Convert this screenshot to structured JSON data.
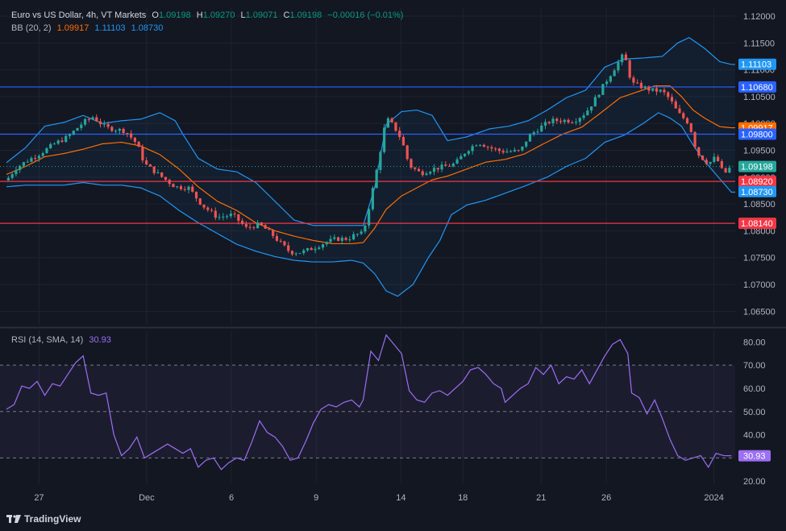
{
  "header": {
    "symbol": "Euro vs US Dollar, 4h, VT Markets",
    "o_label": "O",
    "o": "1.09198",
    "h_label": "H",
    "h": "1.09270",
    "l_label": "L",
    "l": "1.09071",
    "c_label": "C",
    "c": "1.09198",
    "change": "−0.00016 (−0.01%)",
    "bb_label": "BB (20, 2)",
    "bb_mid": "1.09917",
    "bb_upper": "1.11103",
    "bb_lower": "1.08730",
    "rsi_label": "RSI (14, SMA, 14)",
    "rsi_value": "30.93"
  },
  "brand": "TradingView",
  "colors": {
    "background": "#131722",
    "grid": "#1f2330",
    "up": "#26a69a",
    "down": "#ef5350",
    "bb_band": "#2196f3",
    "bb_basis": "#ff6d00",
    "rsi": "#9c6ff3",
    "hline_blue": "#2962ff",
    "hline_red": "#f23645",
    "price_label": "#26a69a"
  },
  "chart_data": [
    {
      "type": "candlestick",
      "title": "Euro vs US Dollar, 4h, VT Markets",
      "y_ticks": [
        "1.12000",
        "1.11500",
        "1.11000",
        "1.10500",
        "1.10000",
        "1.09500",
        "1.09000",
        "1.08500",
        "1.08000",
        "1.07500",
        "1.07000",
        "1.06500"
      ],
      "x_ticks": [
        "27",
        "Dec",
        "6",
        "9",
        "14",
        "18",
        "21",
        "26",
        "2024"
      ],
      "ylim": [
        1.0625,
        1.1215
      ],
      "close_path": [
        [
          0,
          1.0894
        ],
        [
          5,
          1.0917
        ],
        [
          10,
          1.0929
        ],
        [
          18,
          1.0945
        ],
        [
          25,
          1.0962
        ],
        [
          32,
          1.0975
        ],
        [
          40,
          1.1002
        ],
        [
          45,
          1.1012
        ],
        [
          52,
          1.0992
        ],
        [
          62,
          1.0986
        ],
        [
          68,
          1.0962
        ],
        [
          72,
          1.0925
        ],
        [
          80,
          1.0903
        ],
        [
          88,
          1.0882
        ],
        [
          95,
          1.088
        ],
        [
          102,
          1.0848
        ],
        [
          110,
          1.0825
        ],
        [
          118,
          1.083
        ],
        [
          125,
          1.0805
        ],
        [
          132,
          1.0812
        ],
        [
          138,
          1.0795
        ],
        [
          142,
          1.078
        ],
        [
          148,
          1.076
        ],
        [
          154,
          1.076
        ],
        [
          160,
          1.0768
        ],
        [
          166,
          1.0778
        ],
        [
          172,
          1.0785
        ],
        [
          178,
          1.0785
        ],
        [
          182,
          1.0793
        ],
        [
          186,
          1.0795
        ],
        [
          190,
          1.086
        ],
        [
          194,
          1.093
        ],
        [
          198,
          1.101
        ],
        [
          202,
          1.0995
        ],
        [
          206,
          1.097
        ],
        [
          210,
          1.0922
        ],
        [
          216,
          1.0907
        ],
        [
          222,
          1.0915
        ],
        [
          230,
          1.0921
        ],
        [
          234,
          1.0925
        ],
        [
          240,
          1.095
        ],
        [
          246,
          1.0965
        ],
        [
          252,
          1.0955
        ],
        [
          258,
          1.0948
        ],
        [
          264,
          1.0948
        ],
        [
          268,
          1.0948
        ],
        [
          272,
          1.0975
        ],
        [
          278,
          1.0992
        ],
        [
          284,
          1.1005
        ],
        [
          290,
          1.1006
        ],
        [
          296,
          1.1005
        ],
        [
          302,
          1.102
        ],
        [
          306,
          1.104
        ],
        [
          312,
          1.1075
        ],
        [
          318,
          1.1108
        ],
        [
          322,
          1.113
        ],
        [
          326,
          1.1075
        ],
        [
          330,
          1.107
        ],
        [
          336,
          1.1062
        ],
        [
          342,
          1.106
        ],
        [
          346,
          1.1045
        ],
        [
          350,
          1.102
        ],
        [
          356,
          1.1
        ],
        [
          360,
          1.0945
        ],
        [
          366,
          1.0925
        ],
        [
          370,
          1.0938
        ],
        [
          374,
          1.0905
        ],
        [
          378,
          1.092
        ]
      ],
      "bb_upper_path": [
        [
          0,
          1.0927
        ],
        [
          10,
          1.0955
        ],
        [
          20,
          1.0995
        ],
        [
          30,
          1.1002
        ],
        [
          40,
          1.1015
        ],
        [
          50,
          1.1
        ],
        [
          60,
          1.1005
        ],
        [
          70,
          1.1008
        ],
        [
          80,
          1.102
        ],
        [
          88,
          1.1005
        ],
        [
          92,
          1.098
        ],
        [
          100,
          1.0935
        ],
        [
          110,
          1.0915
        ],
        [
          120,
          1.091
        ],
        [
          130,
          1.089
        ],
        [
          140,
          1.0855
        ],
        [
          150,
          1.082
        ],
        [
          160,
          1.081
        ],
        [
          170,
          1.081
        ],
        [
          180,
          1.081
        ],
        [
          186,
          1.081
        ],
        [
          192,
          1.088
        ],
        [
          198,
          1.0998
        ],
        [
          206,
          1.1022
        ],
        [
          214,
          1.1025
        ],
        [
          222,
          1.1015
        ],
        [
          230,
          1.0968
        ],
        [
          240,
          1.0975
        ],
        [
          252,
          1.099
        ],
        [
          262,
          1.0995
        ],
        [
          272,
          1.1005
        ],
        [
          282,
          1.1025
        ],
        [
          292,
          1.1048
        ],
        [
          302,
          1.1062
        ],
        [
          312,
          1.1105
        ],
        [
          322,
          1.112
        ],
        [
          332,
          1.1122
        ],
        [
          342,
          1.1125
        ],
        [
          350,
          1.115
        ],
        [
          356,
          1.116
        ],
        [
          364,
          1.114
        ],
        [
          372,
          1.1115
        ],
        [
          378,
          1.111
        ]
      ],
      "bb_lower_path": [
        [
          0,
          1.0882
        ],
        [
          10,
          1.0885
        ],
        [
          20,
          1.0885
        ],
        [
          30,
          1.0885
        ],
        [
          40,
          1.089
        ],
        [
          50,
          1.0885
        ],
        [
          60,
          1.0885
        ],
        [
          70,
          1.088
        ],
        [
          80,
          1.0865
        ],
        [
          90,
          1.0838
        ],
        [
          100,
          1.0815
        ],
        [
          110,
          1.0795
        ],
        [
          120,
          1.0775
        ],
        [
          130,
          1.0762
        ],
        [
          140,
          1.0752
        ],
        [
          150,
          1.0745
        ],
        [
          160,
          1.0742
        ],
        [
          170,
          1.0742
        ],
        [
          180,
          1.0745
        ],
        [
          186,
          1.074
        ],
        [
          192,
          1.072
        ],
        [
          198,
          1.0688
        ],
        [
          204,
          1.0678
        ],
        [
          212,
          1.07
        ],
        [
          220,
          1.075
        ],
        [
          226,
          1.0782
        ],
        [
          232,
          1.083
        ],
        [
          240,
          1.0848
        ],
        [
          250,
          1.0857
        ],
        [
          260,
          1.087
        ],
        [
          270,
          1.0883
        ],
        [
          282,
          1.09
        ],
        [
          292,
          1.092
        ],
        [
          302,
          1.0935
        ],
        [
          312,
          1.0965
        ],
        [
          322,
          1.0978
        ],
        [
          332,
          1.1
        ],
        [
          340,
          1.102
        ],
        [
          346,
          1.101
        ],
        [
          352,
          1.0995
        ],
        [
          358,
          1.096
        ],
        [
          364,
          1.093
        ],
        [
          370,
          1.0905
        ],
        [
          378,
          1.0872
        ]
      ],
      "bb_basis_path": [
        [
          0,
          1.0905
        ],
        [
          10,
          1.092
        ],
        [
          20,
          1.0938
        ],
        [
          30,
          1.0944
        ],
        [
          40,
          1.0952
        ],
        [
          50,
          1.0962
        ],
        [
          60,
          1.0965
        ],
        [
          70,
          1.0958
        ],
        [
          80,
          1.0942
        ],
        [
          90,
          1.0915
        ],
        [
          100,
          1.0882
        ],
        [
          110,
          1.0855
        ],
        [
          120,
          1.0838
        ],
        [
          130,
          1.0815
        ],
        [
          140,
          1.08
        ],
        [
          150,
          1.079
        ],
        [
          160,
          1.0782
        ],
        [
          170,
          1.0776
        ],
        [
          180,
          1.0776
        ],
        [
          186,
          1.0778
        ],
        [
          192,
          1.0805
        ],
        [
          198,
          1.084
        ],
        [
          206,
          1.0865
        ],
        [
          214,
          1.088
        ],
        [
          222,
          1.0895
        ],
        [
          230,
          1.0902
        ],
        [
          240,
          1.0915
        ],
        [
          250,
          1.0928
        ],
        [
          260,
          1.0933
        ],
        [
          270,
          1.0943
        ],
        [
          280,
          1.0962
        ],
        [
          290,
          1.098
        ],
        [
          300,
          1.0993
        ],
        [
          310,
          1.102
        ],
        [
          320,
          1.1048
        ],
        [
          330,
          1.106
        ],
        [
          338,
          1.107
        ],
        [
          346,
          1.107
        ],
        [
          352,
          1.105
        ],
        [
          358,
          1.1025
        ],
        [
          364,
          1.101
        ],
        [
          372,
          1.0994
        ],
        [
          378,
          1.0992
        ]
      ],
      "horizontal_lines": [
        {
          "price": 1.1068,
          "label": "1.10680",
          "color": "#2962ff"
        },
        {
          "price": 1.098,
          "label": "1.09800",
          "color": "#2962ff"
        },
        {
          "price": 1.0892,
          "label": "1.08920",
          "color": "#f23645"
        },
        {
          "price": 1.0814,
          "label": "1.08140",
          "color": "#f23645"
        }
      ],
      "price_labels": [
        {
          "label": "1.11103",
          "color": "#2196f3"
        },
        {
          "label": "1.10680",
          "color": "#2962ff"
        },
        {
          "label": "1.09917",
          "color": "#ff6d00"
        },
        {
          "label": "1.09800",
          "color": "#2962ff"
        },
        {
          "label": "1.09198",
          "color": "#26a69a"
        },
        {
          "label": "1.08920",
          "color": "#f23645"
        },
        {
          "label": "1.08730",
          "color": "#2196f3"
        },
        {
          "label": "1.08140",
          "color": "#f23645"
        }
      ],
      "last_price": 1.09198
    },
    {
      "type": "line",
      "title": "RSI (14, SMA, 14)",
      "y_ticks": [
        "80.00",
        "70.00",
        "60.00",
        "50.00",
        "40.00",
        "30.00",
        "20.00"
      ],
      "ylim": [
        19,
        85
      ],
      "levels": [
        70,
        50,
        30
      ],
      "current": "30.93",
      "rsi_path": [
        [
          0,
          51
        ],
        [
          4,
          53
        ],
        [
          8,
          61
        ],
        [
          12,
          60
        ],
        [
          16,
          63
        ],
        [
          20,
          57
        ],
        [
          24,
          62
        ],
        [
          28,
          61
        ],
        [
          32,
          66
        ],
        [
          36,
          71
        ],
        [
          40,
          74
        ],
        [
          44,
          58
        ],
        [
          48,
          57
        ],
        [
          52,
          58
        ],
        [
          56,
          40
        ],
        [
          60,
          31
        ],
        [
          64,
          34
        ],
        [
          68,
          39
        ],
        [
          72,
          30
        ],
        [
          76,
          32
        ],
        [
          80,
          34
        ],
        [
          84,
          36
        ],
        [
          88,
          34
        ],
        [
          92,
          32
        ],
        [
          96,
          34
        ],
        [
          100,
          26
        ],
        [
          104,
          29
        ],
        [
          108,
          30
        ],
        [
          112,
          25
        ],
        [
          116,
          28
        ],
        [
          120,
          30
        ],
        [
          124,
          29
        ],
        [
          128,
          37
        ],
        [
          132,
          46
        ],
        [
          136,
          41
        ],
        [
          140,
          39
        ],
        [
          144,
          35
        ],
        [
          148,
          29
        ],
        [
          152,
          30
        ],
        [
          156,
          37
        ],
        [
          160,
          45
        ],
        [
          164,
          51
        ],
        [
          168,
          53
        ],
        [
          172,
          52
        ],
        [
          176,
          54
        ],
        [
          180,
          55
        ],
        [
          184,
          52
        ],
        [
          186,
          55
        ],
        [
          190,
          76
        ],
        [
          194,
          72
        ],
        [
          198,
          83
        ],
        [
          202,
          79
        ],
        [
          206,
          75
        ],
        [
          210,
          59
        ],
        [
          214,
          55
        ],
        [
          218,
          54
        ],
        [
          222,
          58
        ],
        [
          226,
          59
        ],
        [
          230,
          57
        ],
        [
          234,
          60
        ],
        [
          238,
          63
        ],
        [
          242,
          68
        ],
        [
          246,
          69
        ],
        [
          250,
          66
        ],
        [
          254,
          62
        ],
        [
          258,
          60
        ],
        [
          260,
          54
        ],
        [
          264,
          57
        ],
        [
          268,
          60
        ],
        [
          272,
          62
        ],
        [
          276,
          69
        ],
        [
          280,
          66
        ],
        [
          284,
          70
        ],
        [
          288,
          62
        ],
        [
          292,
          65
        ],
        [
          296,
          64
        ],
        [
          300,
          68
        ],
        [
          304,
          62
        ],
        [
          308,
          68
        ],
        [
          312,
          74
        ],
        [
          316,
          79
        ],
        [
          320,
          81
        ],
        [
          324,
          75
        ],
        [
          326,
          58
        ],
        [
          330,
          56
        ],
        [
          334,
          49
        ],
        [
          338,
          55
        ],
        [
          342,
          47
        ],
        [
          346,
          38
        ],
        [
          350,
          31
        ],
        [
          354,
          29
        ],
        [
          358,
          30
        ],
        [
          362,
          31
        ],
        [
          366,
          26
        ],
        [
          370,
          32
        ],
        [
          374,
          31
        ],
        [
          378,
          30.93
        ]
      ]
    }
  ]
}
